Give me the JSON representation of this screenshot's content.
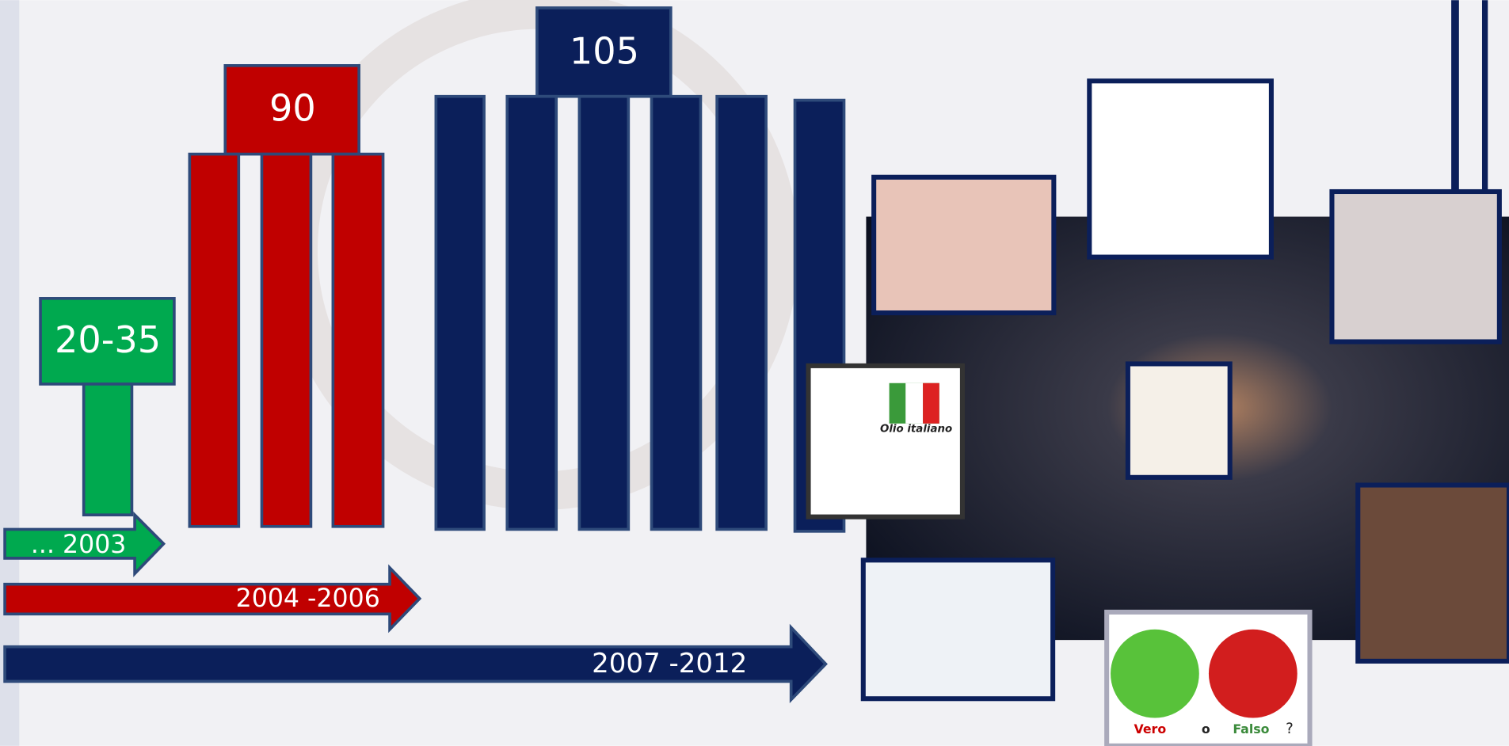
{
  "groups": [
    {
      "label": "20-35",
      "period": "... 2003"
    },
    {
      "label": "90",
      "period": "2004 -2006"
    },
    {
      "label": "105",
      "period": "2007 -2012"
    }
  ],
  "images": {
    "olive": "Olio italiano",
    "apple": {
      "true": "Vero",
      "or": "o",
      "false": "Falso",
      "question": "?"
    }
  }
}
